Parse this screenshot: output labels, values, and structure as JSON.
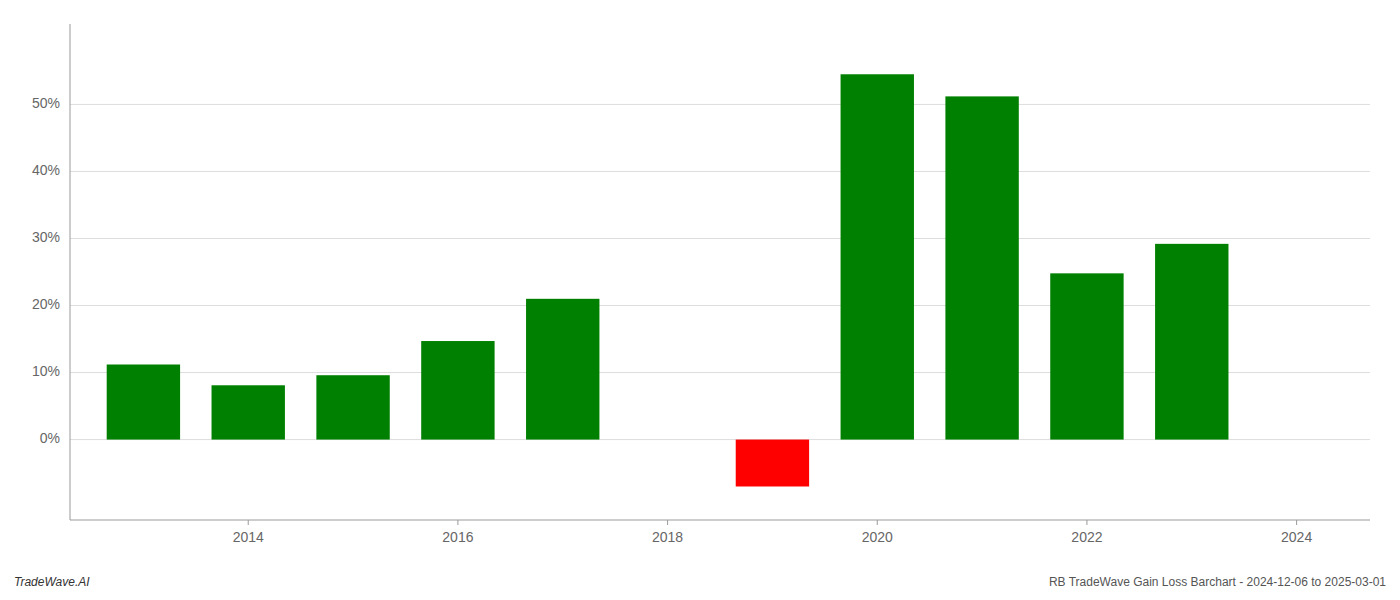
{
  "chart_data": {
    "type": "bar",
    "x": [
      2013,
      2014,
      2015,
      2016,
      2017,
      2019,
      2020,
      2021,
      2022,
      2023
    ],
    "values": [
      11.2,
      8.1,
      9.6,
      14.7,
      21.0,
      -7.0,
      54.5,
      51.2,
      24.8,
      29.2
    ],
    "colors": [
      "#008000",
      "#008000",
      "#008000",
      "#008000",
      "#008000",
      "#ff0000",
      "#008000",
      "#008000",
      "#008000",
      "#008000"
    ],
    "xlim": [
      2012.3,
      2024.7
    ],
    "xticks": [
      2014,
      2016,
      2018,
      2020,
      2022,
      2024
    ],
    "ylim": [
      -12,
      62
    ],
    "yticks": [
      {
        "value": 0,
        "label": "0%"
      },
      {
        "value": 10,
        "label": "10%"
      },
      {
        "value": 20,
        "label": "20%"
      },
      {
        "value": 30,
        "label": "30%"
      },
      {
        "value": 40,
        "label": "40%"
      },
      {
        "value": 50,
        "label": "50%"
      }
    ],
    "grid": true,
    "annotations": [
      "TradeWave.AI",
      "RB TradeWave Gain Loss Barchart - 2024-12-06 to 2025-03-01"
    ]
  }
}
